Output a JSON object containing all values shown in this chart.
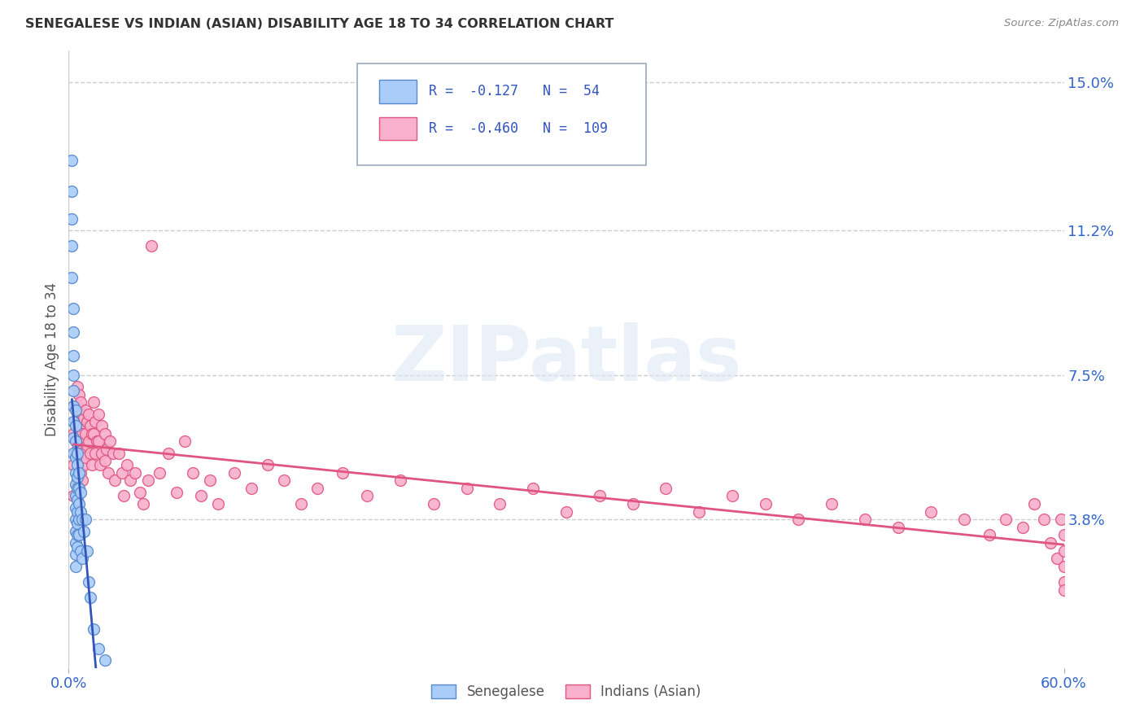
{
  "title": "SENEGALESE VS INDIAN (ASIAN) DISABILITY AGE 18 TO 34 CORRELATION CHART",
  "source": "Source: ZipAtlas.com",
  "ylabel": "Disability Age 18 to 34",
  "xlim": [
    0.0,
    0.6
  ],
  "ylim": [
    0.0,
    0.158
  ],
  "ytick_vals": [
    0.038,
    0.075,
    0.112,
    0.15
  ],
  "ytick_labels": [
    "3.8%",
    "7.5%",
    "11.2%",
    "15.0%"
  ],
  "xtick_vals": [
    0.0,
    0.6
  ],
  "xtick_labels": [
    "0.0%",
    "60.0%"
  ],
  "senegalese_color": "#aaccf8",
  "senegalese_edge": "#5588cc",
  "indian_color": "#f8b0cc",
  "indian_edge": "#e05580",
  "blue_line_color": "#3355bb",
  "pink_line_color": "#e05580",
  "dashed_line_color": "#b8c4d4",
  "legend_R1": "-0.127",
  "legend_N1": "54",
  "legend_R2": "-0.460",
  "legend_N2": "109",
  "watermark_text": "ZIPatlas",
  "senegalese_x": [
    0.002,
    0.002,
    0.002,
    0.002,
    0.002,
    0.003,
    0.003,
    0.003,
    0.003,
    0.003,
    0.003,
    0.003,
    0.003,
    0.003,
    0.004,
    0.004,
    0.004,
    0.004,
    0.004,
    0.004,
    0.004,
    0.004,
    0.004,
    0.004,
    0.004,
    0.004,
    0.004,
    0.005,
    0.005,
    0.005,
    0.005,
    0.005,
    0.005,
    0.005,
    0.005,
    0.005,
    0.006,
    0.006,
    0.006,
    0.006,
    0.006,
    0.007,
    0.007,
    0.007,
    0.008,
    0.008,
    0.009,
    0.01,
    0.011,
    0.012,
    0.013,
    0.015,
    0.018,
    0.022
  ],
  "senegalese_y": [
    0.13,
    0.122,
    0.115,
    0.108,
    0.1,
    0.092,
    0.086,
    0.08,
    0.075,
    0.071,
    0.067,
    0.063,
    0.059,
    0.055,
    0.066,
    0.062,
    0.058,
    0.054,
    0.05,
    0.047,
    0.044,
    0.041,
    0.038,
    0.035,
    0.032,
    0.029,
    0.026,
    0.055,
    0.052,
    0.049,
    0.046,
    0.043,
    0.04,
    0.037,
    0.034,
    0.031,
    0.05,
    0.046,
    0.042,
    0.038,
    0.034,
    0.045,
    0.04,
    0.03,
    0.038,
    0.028,
    0.035,
    0.038,
    0.03,
    0.022,
    0.018,
    0.01,
    0.005,
    0.002
  ],
  "indian_x": [
    0.003,
    0.003,
    0.003,
    0.004,
    0.004,
    0.005,
    0.005,
    0.005,
    0.005,
    0.005,
    0.006,
    0.006,
    0.006,
    0.007,
    0.007,
    0.007,
    0.007,
    0.008,
    0.008,
    0.008,
    0.008,
    0.009,
    0.009,
    0.009,
    0.01,
    0.01,
    0.01,
    0.011,
    0.011,
    0.012,
    0.012,
    0.013,
    0.013,
    0.014,
    0.014,
    0.015,
    0.015,
    0.016,
    0.016,
    0.017,
    0.018,
    0.018,
    0.019,
    0.02,
    0.02,
    0.022,
    0.022,
    0.023,
    0.024,
    0.025,
    0.027,
    0.028,
    0.03,
    0.032,
    0.033,
    0.035,
    0.037,
    0.04,
    0.043,
    0.045,
    0.048,
    0.05,
    0.055,
    0.06,
    0.065,
    0.07,
    0.075,
    0.08,
    0.085,
    0.09,
    0.1,
    0.11,
    0.12,
    0.13,
    0.14,
    0.15,
    0.165,
    0.18,
    0.2,
    0.22,
    0.24,
    0.26,
    0.28,
    0.3,
    0.32,
    0.34,
    0.36,
    0.38,
    0.4,
    0.42,
    0.44,
    0.46,
    0.48,
    0.5,
    0.52,
    0.54,
    0.555,
    0.565,
    0.575,
    0.582,
    0.588,
    0.592,
    0.596,
    0.598,
    0.6,
    0.6,
    0.6,
    0.6,
    0.6
  ],
  "indian_y": [
    0.06,
    0.052,
    0.044,
    0.063,
    0.055,
    0.072,
    0.067,
    0.062,
    0.056,
    0.048,
    0.07,
    0.064,
    0.058,
    0.068,
    0.062,
    0.056,
    0.05,
    0.065,
    0.06,
    0.055,
    0.048,
    0.064,
    0.058,
    0.052,
    0.066,
    0.06,
    0.054,
    0.063,
    0.057,
    0.065,
    0.058,
    0.062,
    0.055,
    0.06,
    0.052,
    0.068,
    0.06,
    0.063,
    0.055,
    0.058,
    0.065,
    0.058,
    0.052,
    0.062,
    0.055,
    0.06,
    0.053,
    0.056,
    0.05,
    0.058,
    0.055,
    0.048,
    0.055,
    0.05,
    0.044,
    0.052,
    0.048,
    0.05,
    0.045,
    0.042,
    0.048,
    0.108,
    0.05,
    0.055,
    0.045,
    0.058,
    0.05,
    0.044,
    0.048,
    0.042,
    0.05,
    0.046,
    0.052,
    0.048,
    0.042,
    0.046,
    0.05,
    0.044,
    0.048,
    0.042,
    0.046,
    0.042,
    0.046,
    0.04,
    0.044,
    0.042,
    0.046,
    0.04,
    0.044,
    0.042,
    0.038,
    0.042,
    0.038,
    0.036,
    0.04,
    0.038,
    0.034,
    0.038,
    0.036,
    0.042,
    0.038,
    0.032,
    0.028,
    0.038,
    0.034,
    0.03,
    0.026,
    0.022,
    0.02
  ]
}
